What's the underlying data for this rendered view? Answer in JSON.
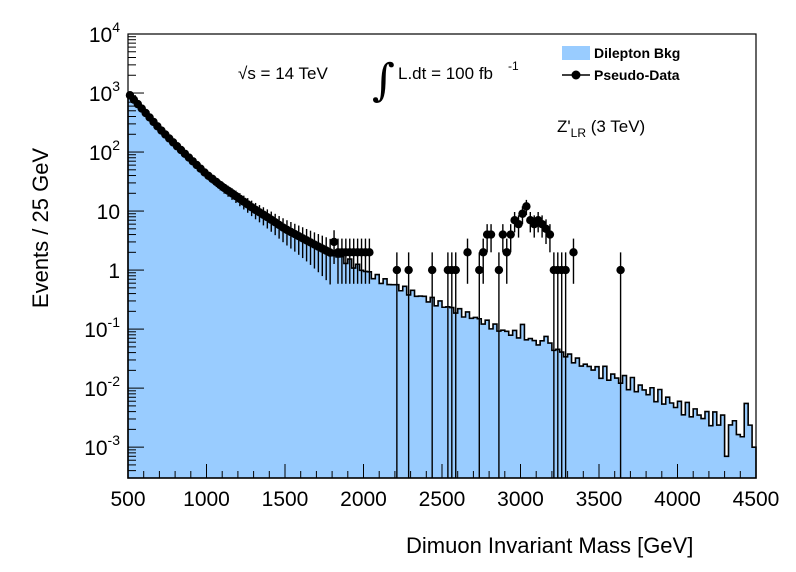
{
  "chart_data": {
    "type": "histogram",
    "title": "",
    "xlabel": "Dimuon Invariant Mass [GeV]",
    "ylabel": "Events / 25 GeV",
    "xlim": [
      500,
      4500
    ],
    "ylim": [
      0.0003,
      10000
    ],
    "yscale": "log",
    "bin_width": 25,
    "x_ticks": [
      500,
      1000,
      1500,
      2000,
      2500,
      3000,
      3500,
      4000,
      4500
    ],
    "x_tick_labels": [
      "500",
      "1000",
      "1500",
      "2000",
      "2500",
      "3000",
      "3500",
      "4000",
      "4500"
    ],
    "y_ticks": [
      {
        "value": 0.001,
        "base": "10",
        "exp": "-3"
      },
      {
        "value": 0.01,
        "base": "10",
        "exp": "-2"
      },
      {
        "value": 0.1,
        "base": "10",
        "exp": "-1"
      },
      {
        "value": 1,
        "base": "1",
        "exp": ""
      },
      {
        "value": 10,
        "base": "10",
        "exp": ""
      },
      {
        "value": 100,
        "base": "10",
        "exp": "2"
      },
      {
        "value": 1000,
        "base": "10",
        "exp": "3"
      },
      {
        "value": 10000,
        "base": "10",
        "exp": "4"
      }
    ],
    "annotations": {
      "sqrt_s": "√s = 14 TeV",
      "integral_symbol": "∫",
      "lumi": "L.dt = 100 fb",
      "lumi_exp": "-1",
      "signal_main": "Z'",
      "signal_sub": "LR",
      "signal_rest": " (3 TeV)"
    },
    "legend": {
      "position": "top-right",
      "entries": [
        {
          "label": "Dilepton Bkg",
          "kind": "fill",
          "color": "#99ccff"
        },
        {
          "label": "Pseudo-Data",
          "kind": "marker",
          "color": "#000000"
        }
      ]
    },
    "colors": {
      "background_fill": "#99ccff",
      "outline": "#000000",
      "data": "#000000"
    },
    "series": [
      {
        "name": "Dilepton Bkg",
        "kind": "step",
        "points": [
          [
            500,
            1000
          ],
          [
            600,
            500
          ],
          [
            700,
            250
          ],
          [
            800,
            135
          ],
          [
            900,
            75
          ],
          [
            1000,
            42
          ],
          [
            1100,
            26
          ],
          [
            1200,
            17
          ],
          [
            1300,
            11
          ],
          [
            1400,
            7.5
          ],
          [
            1500,
            5
          ],
          [
            1600,
            3.6
          ],
          [
            1700,
            2.6
          ],
          [
            1800,
            1.9
          ],
          [
            1900,
            1.4
          ],
          [
            2000,
            1.0
          ],
          [
            2100,
            0.7
          ],
          [
            2200,
            0.55
          ],
          [
            2300,
            0.42
          ],
          [
            2400,
            0.33
          ],
          [
            2500,
            0.26
          ],
          [
            2600,
            0.2
          ],
          [
            2700,
            0.16
          ],
          [
            2800,
            0.12
          ],
          [
            2900,
            0.09
          ],
          [
            3000,
            0.08
          ],
          [
            3100,
            0.06
          ],
          [
            3200,
            0.05
          ],
          [
            3300,
            0.035
          ],
          [
            3400,
            0.025
          ],
          [
            3500,
            0.02
          ],
          [
            3600,
            0.015
          ],
          [
            3700,
            0.012
          ],
          [
            3800,
            0.009
          ],
          [
            3900,
            0.007
          ],
          [
            4000,
            0.005
          ],
          [
            4100,
            0.004
          ],
          [
            4200,
            0.003
          ],
          [
            4300,
            0.003
          ],
          [
            4400,
            0.002
          ],
          [
            4500,
            0.002
          ]
        ],
        "features": [
          {
            "x": 3000,
            "value": 0.12
          },
          {
            "x": 3150,
            "value": 0.075
          },
          {
            "x": 4175,
            "value": 0.004
          },
          {
            "x": 4300,
            "value": 0.0007
          },
          {
            "x": 4400,
            "value": 0.0015
          },
          {
            "x": 4425,
            "value": 0.0055
          },
          {
            "x": 4475,
            "value": 0.001
          }
        ]
      },
      {
        "name": "Pseudo-Data",
        "kind": "points_with_errors",
        "dense_range": {
          "from": 512.5,
          "to": 1787.5,
          "step": 25
        },
        "points": [
          {
            "x": 1812.5,
            "y": 3
          },
          {
            "x": 1837.5,
            "y": 2
          },
          {
            "x": 1862.5,
            "y": 2
          },
          {
            "x": 1887.5,
            "y": 2
          },
          {
            "x": 1912.5,
            "y": 2
          },
          {
            "x": 1937.5,
            "y": 2
          },
          {
            "x": 1962.5,
            "y": 2
          },
          {
            "x": 1987.5,
            "y": 2
          },
          {
            "x": 2012.5,
            "y": 2
          },
          {
            "x": 2037.5,
            "y": 2
          },
          {
            "x": 2212.5,
            "y": 1
          },
          {
            "x": 2287.5,
            "y": 1
          },
          {
            "x": 2437.5,
            "y": 1
          },
          {
            "x": 2537.5,
            "y": 1
          },
          {
            "x": 2562.5,
            "y": 1
          },
          {
            "x": 2587.5,
            "y": 1
          },
          {
            "x": 2662.5,
            "y": 2
          },
          {
            "x": 2737.5,
            "y": 1
          },
          {
            "x": 2762.5,
            "y": 2
          },
          {
            "x": 2787.5,
            "y": 4
          },
          {
            "x": 2812.5,
            "y": 4
          },
          {
            "x": 2862.5,
            "y": 1
          },
          {
            "x": 2887.5,
            "y": 4
          },
          {
            "x": 2912.5,
            "y": 2
          },
          {
            "x": 2937.5,
            "y": 4
          },
          {
            "x": 2962.5,
            "y": 7
          },
          {
            "x": 2987.5,
            "y": 6
          },
          {
            "x": 3012.5,
            "y": 9
          },
          {
            "x": 3037.5,
            "y": 12
          },
          {
            "x": 3062.5,
            "y": 7
          },
          {
            "x": 3087.5,
            "y": 6
          },
          {
            "x": 3112.5,
            "y": 7
          },
          {
            "x": 3137.5,
            "y": 6
          },
          {
            "x": 3162.5,
            "y": 5
          },
          {
            "x": 3187.5,
            "y": 4
          },
          {
            "x": 3212.5,
            "y": 1
          },
          {
            "x": 3237.5,
            "y": 1
          },
          {
            "x": 3262.5,
            "y": 1
          },
          {
            "x": 3287.5,
            "y": 1
          },
          {
            "x": 3337.5,
            "y": 2
          },
          {
            "x": 3637.5,
            "y": 1
          }
        ]
      }
    ]
  }
}
